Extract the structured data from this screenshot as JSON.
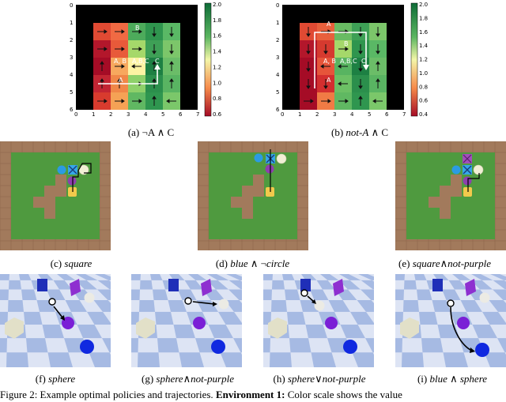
{
  "figure": {
    "captions": {
      "a": "(a) ¬A ∧ C",
      "b_prefix": "(b) ",
      "b_italic": "not-A",
      "b_suffix": " ∧ C",
      "c_prefix": "(c) ",
      "c_italic": "square",
      "d_prefix": "(d) ",
      "d_italic1": "blue",
      "d_mid": " ∧ ¬",
      "d_italic2": "circle",
      "e_prefix": "(e) ",
      "e_italic1": "square",
      "e_mid": "∧",
      "e_italic2": "not-purple",
      "f_prefix": "(f) ",
      "f_italic": "sphere",
      "g_prefix": "(g) ",
      "g_italic1": "sphere",
      "g_mid": "∧",
      "g_italic2": "not-purple",
      "h_prefix": "(h) ",
      "h_italic1": "sphere",
      "h_mid": "∨",
      "h_italic2": "not-purple",
      "i_prefix": "(i) ",
      "i_italic1": "blue",
      "i_mid": " ∧ ",
      "i_italic2": "sphere"
    },
    "footer": {
      "prefix": "Figure 2: Example optimal policies and trajectories. ",
      "bold": "Environment 1:",
      "suffix": " Color scale shows the value"
    },
    "heatmap_a": {
      "x_ticks": [
        "0",
        "1",
        "2",
        "3",
        "4",
        "5",
        "6",
        "7"
      ],
      "y_ticks": [
        "0",
        "1",
        "2",
        "3",
        "4",
        "5",
        "6"
      ],
      "colorbar_ticks": [
        "2.0",
        "1.8",
        "1.6",
        "1.4",
        "1.2",
        "1.0",
        "0.8",
        "0.6"
      ],
      "labels": [
        "B",
        "A, B",
        "A,B,C",
        "C",
        "A"
      ]
    },
    "heatmap_b": {
      "x_ticks": [
        "0",
        "1",
        "2",
        "3",
        "4",
        "5",
        "6",
        "7"
      ],
      "y_ticks": [
        "0",
        "1",
        "2",
        "3",
        "4",
        "5",
        "6"
      ],
      "colorbar_ticks": [
        "2.0",
        "1.8",
        "1.6",
        "1.4",
        "1.2",
        "1.0",
        "0.8",
        "0.6",
        "0.4"
      ],
      "labels": [
        "A",
        "B",
        "A, B",
        "A,B,C",
        "C",
        "A"
      ]
    },
    "colors": {
      "grid_bg": "#000000",
      "wall": "#a27a5c",
      "floor": "#4f9a3f",
      "checker_light": "#dde4f4",
      "checker_dark": "#8ea8dc"
    }
  }
}
